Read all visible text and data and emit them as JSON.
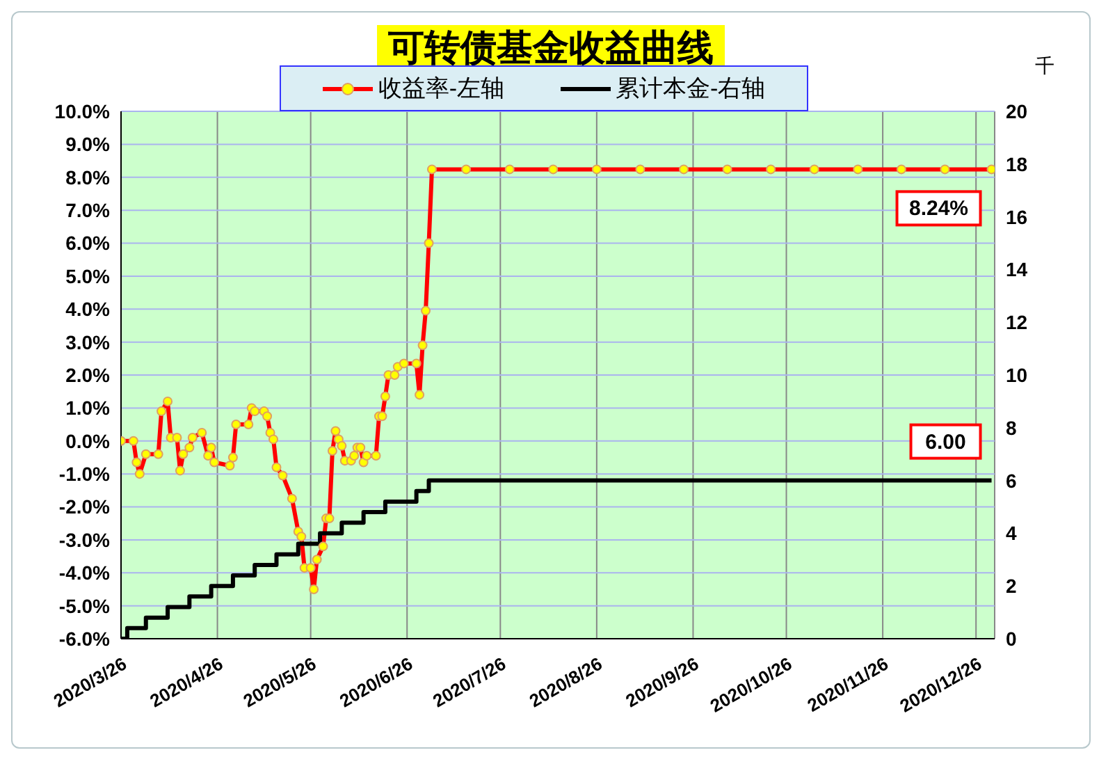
{
  "chart_data": {
    "type": "line",
    "title": "可转债基金收益曲线",
    "y2label": "千",
    "xlim": [
      "2020-03-26",
      "2021-01-01"
    ],
    "xticks": [
      {
        "value": "2020-03-26",
        "label": "2020/3/26"
      },
      {
        "value": "2020-04-26",
        "label": "2020/4/26"
      },
      {
        "value": "2020-05-26",
        "label": "2020/5/26"
      },
      {
        "value": "2020-06-26",
        "label": "2020/6/26"
      },
      {
        "value": "2020-07-26",
        "label": "2020/7/26"
      },
      {
        "value": "2020-08-26",
        "label": "2020/8/26"
      },
      {
        "value": "2020-09-26",
        "label": "2020/9/26"
      },
      {
        "value": "2020-10-26",
        "label": "2020/10/26"
      },
      {
        "value": "2020-11-26",
        "label": "2020/11/26"
      },
      {
        "value": "2020-12-26",
        "label": "2020/12/26"
      }
    ],
    "ylim": [
      -6,
      10
    ],
    "yticks": [
      {
        "value": -6,
        "label": "-6.0%"
      },
      {
        "value": -5,
        "label": "-5.0%"
      },
      {
        "value": -4,
        "label": "-4.0%"
      },
      {
        "value": -3,
        "label": "-3.0%"
      },
      {
        "value": -2,
        "label": "-2.0%"
      },
      {
        "value": -1,
        "label": "-1.0%"
      },
      {
        "value": 0,
        "label": "0.0%"
      },
      {
        "value": 1,
        "label": "1.0%"
      },
      {
        "value": 2,
        "label": "2.0%"
      },
      {
        "value": 3,
        "label": "3.0%"
      },
      {
        "value": 4,
        "label": "4.0%"
      },
      {
        "value": 5,
        "label": "5.0%"
      },
      {
        "value": 6,
        "label": "6.0%"
      },
      {
        "value": 7,
        "label": "7.0%"
      },
      {
        "value": 8,
        "label": "8.0%"
      },
      {
        "value": 9,
        "label": "9.0%"
      },
      {
        "value": 10,
        "label": "10.0%"
      }
    ],
    "y2lim": [
      0,
      20
    ],
    "y2ticks": [
      0,
      2,
      4,
      6,
      8,
      10,
      12,
      14,
      16,
      18,
      20
    ],
    "grid": true,
    "legend": "top",
    "series": [
      {
        "name": "收益率-左轴",
        "color": "#ff0000",
        "marker": "circle",
        "x": [
          "2020-03-26",
          "2020-03-30",
          "2020-03-31",
          "2020-04-01",
          "2020-04-03",
          "2020-04-07",
          "2020-04-08",
          "2020-04-10",
          "2020-04-11",
          "2020-04-13",
          "2020-04-14",
          "2020-04-15",
          "2020-04-17",
          "2020-04-18",
          "2020-04-21",
          "2020-04-23",
          "2020-04-24",
          "2020-04-25",
          "2020-04-30",
          "2020-05-01",
          "2020-05-02",
          "2020-05-06",
          "2020-05-07",
          "2020-05-08",
          "2020-05-11",
          "2020-05-12",
          "2020-05-13",
          "2020-05-14",
          "2020-05-15",
          "2020-05-17",
          "2020-05-20",
          "2020-05-22",
          "2020-05-23",
          "2020-05-24",
          "2020-05-26",
          "2020-05-27",
          "2020-05-28",
          "2020-05-30",
          "2020-05-31",
          "2020-06-01",
          "2020-06-02",
          "2020-06-03",
          "2020-06-04",
          "2020-06-05",
          "2020-06-06",
          "2020-06-08",
          "2020-06-09",
          "2020-06-10",
          "2020-06-11",
          "2020-06-12",
          "2020-06-13",
          "2020-06-16",
          "2020-06-17",
          "2020-06-18",
          "2020-06-19",
          "2020-06-20",
          "2020-06-22",
          "2020-06-23",
          "2020-06-25",
          "2020-06-29",
          "2020-06-30",
          "2020-07-01",
          "2020-07-02",
          "2020-07-03",
          "2020-07-04",
          "2020-07-15",
          "2020-07-29",
          "2020-08-12",
          "2020-08-26",
          "2020-09-09",
          "2020-09-23",
          "2020-10-07",
          "2020-10-21",
          "2020-11-04",
          "2020-11-18",
          "2020-12-02",
          "2020-12-16",
          "2020-12-31"
        ],
        "values": [
          0,
          0,
          -0.65,
          -1,
          -0.4,
          -0.4,
          0.9,
          1.2,
          0.1,
          0.1,
          -0.9,
          -0.4,
          -0.2,
          0.1,
          0.25,
          -0.45,
          -0.2,
          -0.65,
          -0.75,
          -0.5,
          0.5,
          0.5,
          1,
          0.9,
          0.9,
          0.75,
          0.25,
          0.05,
          -0.8,
          -1.05,
          -1.75,
          -2.75,
          -2.9,
          -3.85,
          -3.85,
          -4.5,
          -3.6,
          -3.2,
          -2.35,
          -2.35,
          -0.3,
          0.3,
          0.05,
          -0.15,
          -0.6,
          -0.6,
          -0.45,
          -0.2,
          -0.2,
          -0.65,
          -0.45,
          -0.45,
          0.75,
          0.75,
          1.35,
          2,
          2,
          2.25,
          2.35,
          2.35,
          1.4,
          2.9,
          3.95,
          6,
          8.24,
          8.24,
          8.24,
          8.24,
          8.24,
          8.24,
          8.24,
          8.24,
          8.24,
          8.24,
          8.24,
          8.24,
          8.24,
          8.24
        ]
      },
      {
        "name": "累计本金-右轴",
        "type": "step",
        "color": "#000000",
        "marker": "none",
        "axis": "y2",
        "x": [
          "2020-03-26",
          "2020-03-28",
          "2020-04-03",
          "2020-04-10",
          "2020-04-17",
          "2020-04-24",
          "2020-05-01",
          "2020-05-08",
          "2020-05-15",
          "2020-05-22",
          "2020-05-29",
          "2020-06-05",
          "2020-06-12",
          "2020-06-19",
          "2020-06-29",
          "2020-07-03",
          "2020-12-31"
        ],
        "values": [
          0,
          0.4,
          0.8,
          1.2,
          1.6,
          2,
          2.4,
          2.8,
          3.2,
          3.6,
          4,
          4.4,
          4.8,
          5.2,
          5.6,
          6,
          6
        ]
      }
    ],
    "annotations": [
      "8.24%",
      "6.00"
    ]
  }
}
